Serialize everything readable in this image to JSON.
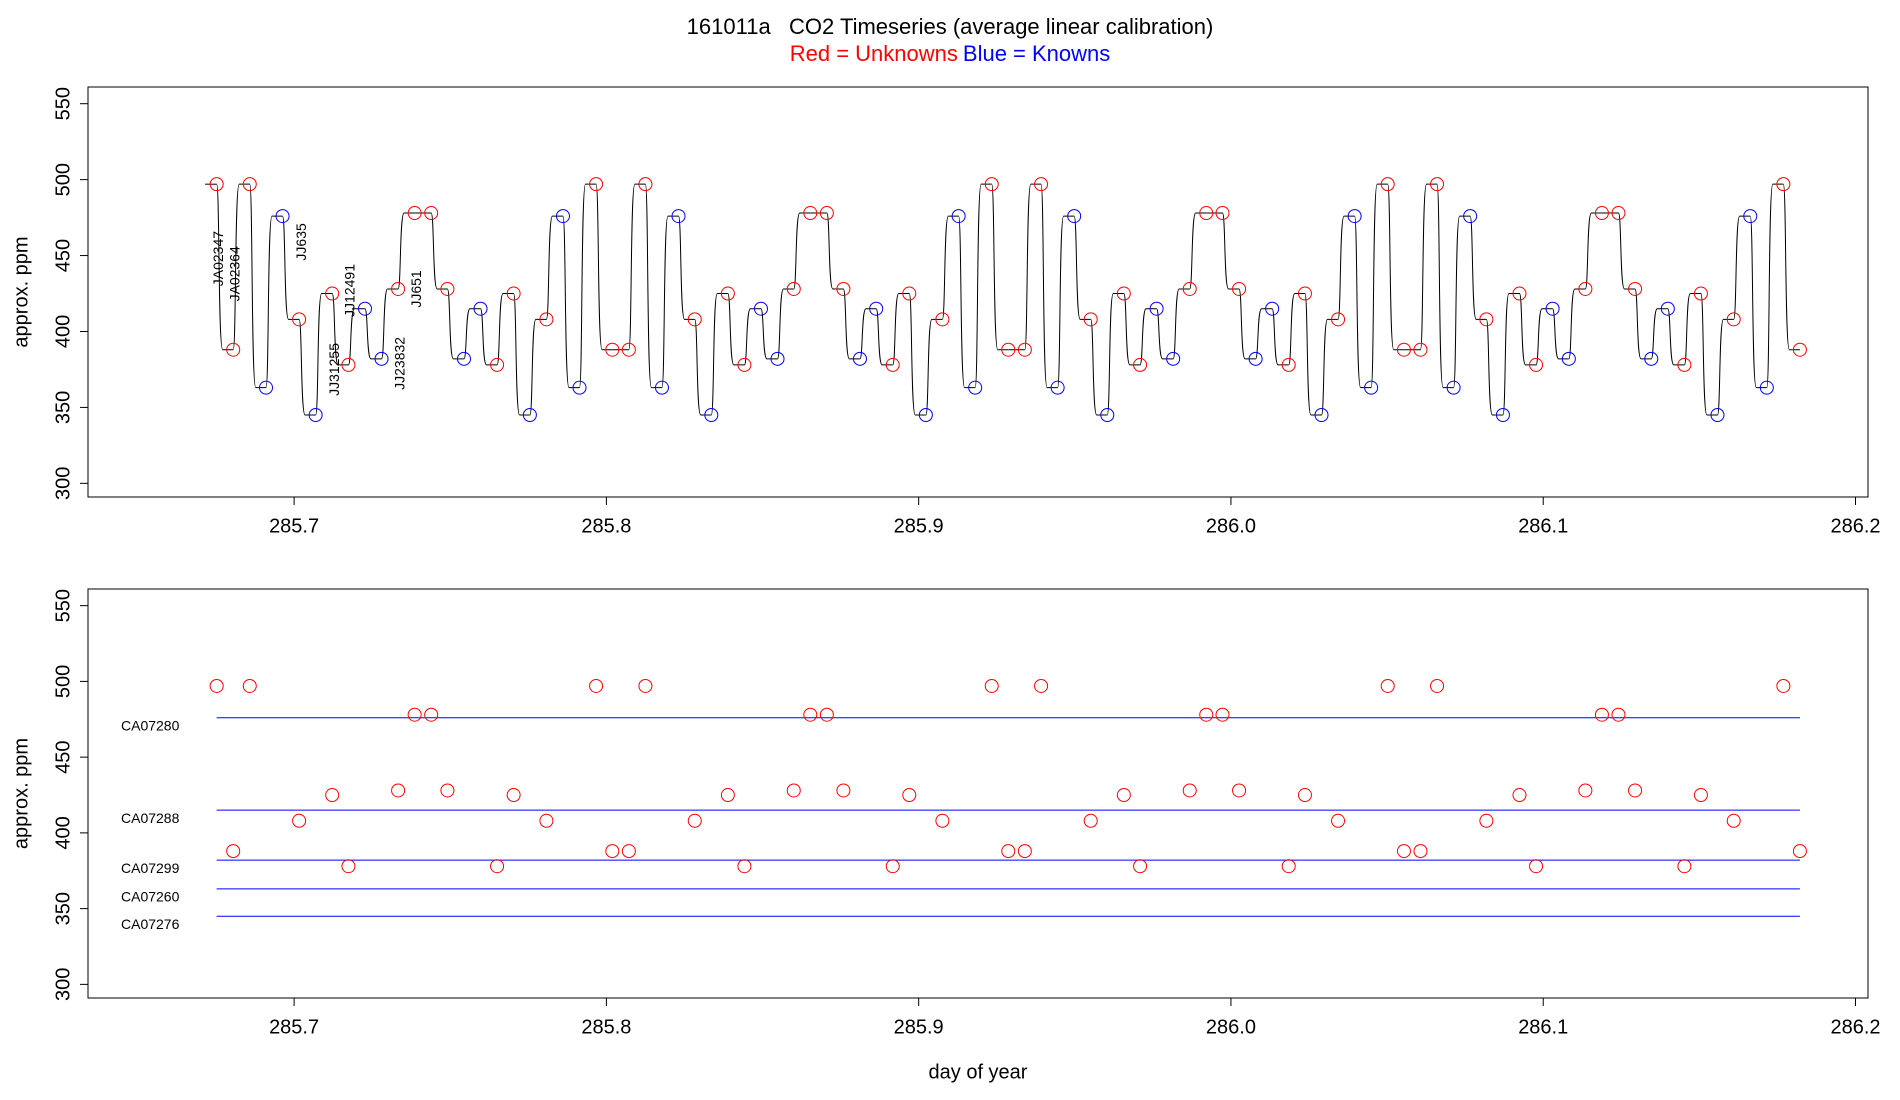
{
  "chart_data": [
    {
      "type": "trace",
      "title": "161011a   CO2 Timeseries (average linear calibration)",
      "legend": [
        {
          "text": "Red = Unknowns",
          "color": "#ff0000"
        },
        {
          "text": "Blue = Knowns",
          "color": "#0000ff"
        }
      ],
      "ylabel": "approx. ppm",
      "xlim": [
        285.634,
        286.204
      ],
      "ylim": [
        291,
        561
      ],
      "xticks": [
        285.7,
        285.8,
        285.9,
        {
          "value": 286.0,
          "label": "286.0"
        },
        286.1,
        286.2
      ],
      "yticks": [
        300,
        350,
        400,
        450,
        500,
        550
      ],
      "line_color": "#000000",
      "x": [
        285.6752,
        285.6805,
        285.6858,
        285.691,
        285.6963,
        285.7016,
        285.7069,
        285.7122,
        285.7174,
        285.7227,
        285.728,
        285.7333,
        285.7386,
        285.7439,
        285.7491,
        285.7544,
        285.7597,
        285.765,
        285.7703,
        285.7755,
        285.7808,
        285.7861,
        285.7914,
        285.7967,
        285.8019,
        285.8072,
        285.8125,
        285.8178,
        285.8231,
        285.8283,
        285.8336,
        285.8389,
        285.8442,
        285.8495,
        285.8548,
        285.86,
        285.8653,
        285.8706,
        285.8759,
        285.8812,
        285.8864,
        285.8917,
        285.897,
        285.9023,
        285.9076,
        285.9128,
        285.9181,
        285.9234,
        285.9287,
        285.934,
        285.9392,
        285.9445,
        285.9498,
        285.9551,
        285.9604,
        285.9657,
        285.9709,
        285.9762,
        285.9815,
        285.9868,
        285.9921,
        285.9973,
        286.0026,
        286.0079,
        286.0132,
        286.0185,
        286.0237,
        286.029,
        286.0343,
        286.0396,
        286.0449,
        286.0502,
        286.0554,
        286.0607,
        286.066,
        286.0713,
        286.0766,
        286.0818,
        286.0871,
        286.0924,
        286.0977,
        286.103,
        286.1082,
        286.1135,
        286.1188,
        286.1241,
        286.1294,
        286.1346,
        286.1399,
        286.1452,
        286.1505,
        286.1558,
        286.161,
        286.1663,
        286.1716,
        286.1769,
        286.1822
      ],
      "values": [
        497,
        388,
        497,
        363,
        476,
        408,
        345,
        425,
        378,
        415,
        382,
        428,
        478,
        478,
        428,
        382,
        415,
        378,
        425,
        345,
        408,
        476,
        363,
        497,
        388,
        388,
        497,
        363,
        476,
        408,
        345,
        425,
        378,
        415,
        382,
        428,
        478,
        478,
        428,
        382,
        415,
        378,
        425,
        345,
        408,
        476,
        363,
        497,
        388,
        388,
        497,
        363,
        476,
        408,
        345,
        425,
        378,
        415,
        382,
        428,
        478,
        478,
        428,
        382,
        415,
        378,
        425,
        345,
        408,
        476,
        363,
        497,
        388,
        388,
        497,
        363,
        476,
        408,
        345,
        425,
        378,
        415,
        382,
        428,
        478,
        478,
        428,
        382,
        415,
        378,
        425,
        345,
        408,
        476,
        363,
        497,
        388
      ],
      "point_colors": [
        "#ff0000",
        "#ff0000",
        "#ff0000",
        "#0000ff",
        "#0000ff",
        "#ff0000",
        "#0000ff",
        "#ff0000",
        "#ff0000",
        "#0000ff",
        "#0000ff",
        "#ff0000",
        "#ff0000",
        "#ff0000",
        "#ff0000",
        "#0000ff",
        "#0000ff",
        "#ff0000",
        "#ff0000",
        "#0000ff",
        "#ff0000",
        "#0000ff",
        "#0000ff",
        "#ff0000",
        "#ff0000",
        "#ff0000",
        "#ff0000",
        "#0000ff",
        "#0000ff",
        "#ff0000",
        "#0000ff",
        "#ff0000",
        "#ff0000",
        "#0000ff",
        "#0000ff",
        "#ff0000",
        "#ff0000",
        "#ff0000",
        "#ff0000",
        "#0000ff",
        "#0000ff",
        "#ff0000",
        "#ff0000",
        "#0000ff",
        "#ff0000",
        "#0000ff",
        "#0000ff",
        "#ff0000",
        "#ff0000",
        "#ff0000",
        "#ff0000",
        "#0000ff",
        "#0000ff",
        "#ff0000",
        "#0000ff",
        "#ff0000",
        "#ff0000",
        "#0000ff",
        "#0000ff",
        "#ff0000",
        "#ff0000",
        "#ff0000",
        "#ff0000",
        "#0000ff",
        "#0000ff",
        "#ff0000",
        "#ff0000",
        "#0000ff",
        "#ff0000",
        "#0000ff",
        "#0000ff",
        "#ff0000",
        "#ff0000",
        "#ff0000",
        "#ff0000",
        "#0000ff",
        "#0000ff",
        "#ff0000",
        "#0000ff",
        "#ff0000",
        "#ff0000",
        "#0000ff",
        "#0000ff",
        "#ff0000",
        "#ff0000",
        "#ff0000",
        "#ff0000",
        "#0000ff",
        "#0000ff",
        "#ff0000",
        "#ff0000",
        "#0000ff",
        "#ff0000",
        "#0000ff",
        "#0000ff",
        "#ff0000",
        "#ff0000"
      ],
      "annotation_color": "#ff0000",
      "annotations": [
        {
          "text": "JA02347",
          "x": 285.676,
          "y": 448
        },
        {
          "text": "JA02364",
          "x": 285.6814,
          "y": 438
        },
        {
          "text": "JJ635",
          "x": 285.7027,
          "y": 459
        },
        {
          "text": "JJ31255",
          "x": 285.7132,
          "y": 375
        },
        {
          "text": "JJ12491",
          "x": 285.7182,
          "y": 427
        },
        {
          "text": "JJ23832",
          "x": 285.7341,
          "y": 379
        },
        {
          "text": "JJ651",
          "x": 285.7395,
          "y": 428
        }
      ]
    },
    {
      "type": "scatter",
      "ylabel": "approx. ppm",
      "xlabel": "day of year",
      "xlim": [
        285.634,
        286.204
      ],
      "ylim": [
        291,
        561
      ],
      "xticks": [
        285.7,
        285.8,
        285.9,
        {
          "value": 286.0,
          "label": "286.0"
        },
        286.1,
        286.2
      ],
      "yticks": [
        300,
        350,
        400,
        450,
        500,
        550
      ],
      "color": "#ff0000",
      "x": [
        285.6752,
        285.6805,
        285.6858,
        285.7016,
        285.7122,
        285.7174,
        285.7333,
        285.7386,
        285.7439,
        285.7491,
        285.765,
        285.7703,
        285.7808,
        285.7967,
        285.8019,
        285.8072,
        285.8125,
        285.8283,
        285.8389,
        285.8442,
        285.86,
        285.8653,
        285.8706,
        285.8759,
        285.8917,
        285.897,
        285.9076,
        285.9234,
        285.9287,
        285.934,
        285.9392,
        285.9551,
        285.9657,
        285.9709,
        285.9868,
        285.9921,
        285.9973,
        286.0026,
        286.0185,
        286.0237,
        286.0343,
        286.0502,
        286.0554,
        286.0607,
        286.066,
        286.0818,
        286.0924,
        286.0977,
        286.1135,
        286.1188,
        286.1241,
        286.1294,
        286.1452,
        286.1505,
        286.161,
        286.1769,
        286.1822
      ],
      "values": [
        497,
        388,
        497,
        408,
        425,
        378,
        428,
        478,
        478,
        428,
        378,
        425,
        408,
        497,
        388,
        388,
        497,
        408,
        425,
        378,
        428,
        478,
        478,
        428,
        378,
        425,
        408,
        497,
        388,
        388,
        497,
        408,
        425,
        378,
        428,
        478,
        478,
        428,
        378,
        425,
        408,
        497,
        388,
        388,
        497,
        408,
        425,
        378,
        428,
        478,
        478,
        428,
        378,
        425,
        408,
        497,
        388
      ],
      "reference_color": "#0000ff",
      "reference_lines": [
        {
          "name": "CA07280",
          "value": 476
        },
        {
          "name": "CA07288",
          "value": 415
        },
        {
          "name": "CA07299",
          "value": 382
        },
        {
          "name": "CA07260",
          "value": 363
        },
        {
          "name": "CA07276",
          "value": 345
        }
      ]
    }
  ]
}
